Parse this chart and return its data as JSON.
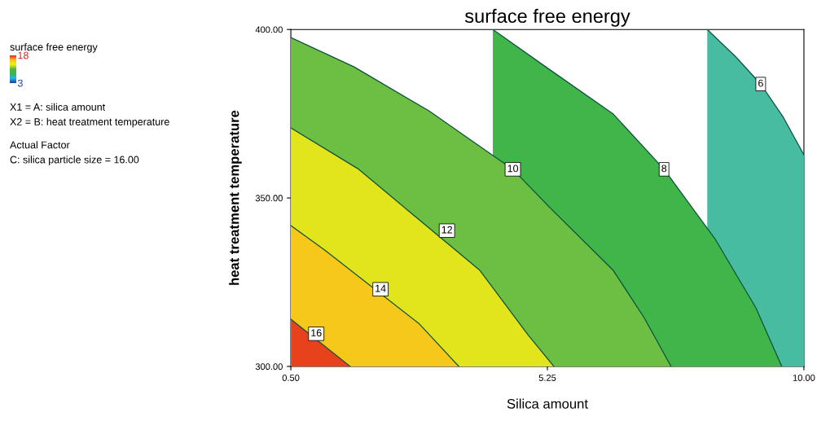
{
  "chart_data": {
    "type": "area",
    "title": "surface free energy",
    "xlabel": "Silica amount",
    "ylabel": "heat treatment temperature",
    "clabel": "surface free energy",
    "series": [
      {
        "color": "#e8421c",
        "x": [
          0.5,
          1.6
        ],
        "values": [
          314.0,
          300
        ]
      },
      {
        "color": "#f5c81a",
        "x": [
          0.5,
          1.13,
          2.88,
          3.61
        ],
        "values": [
          341.8,
          334.5,
          312.6,
          300
        ]
      },
      {
        "color": "#e2e41c",
        "x": [
          0.5,
          1.74,
          4.0,
          4.89,
          5.37
        ],
        "values": [
          370.8,
          358.7,
          328.5,
          309.4,
          300
        ]
      },
      {
        "color": "#6cbf42",
        "x": [
          0.5,
          1.67,
          3.06,
          4.61,
          5.31,
          6.47,
          7.04,
          7.54
        ],
        "values": [
          397.6,
          388.9,
          375.8,
          358.5,
          346.9,
          328.5,
          314.5,
          300
        ]
      },
      {
        "color": "#3fb54a",
        "x": [
          4.24,
          5.22,
          6.47,
          7.41,
          8.36,
          9.11,
          9.59
        ],
        "values": [
          400,
          388.9,
          374.9,
          358.5,
          337.7,
          317.4,
          300
        ]
      },
      {
        "color": "#48bca0",
        "x": [
          8.21,
          8.73,
          9.2,
          9.62,
          10.0
        ],
        "values": [
          400,
          392.0,
          383.8,
          373.9,
          362.8
        ]
      }
    ],
    "clim": [
      3,
      18
    ],
    "cticks": [
      3,
      18
    ],
    "xlim": [
      0.5,
      10.0
    ],
    "xticks": [
      {
        "value": 0.5,
        "label": "0.50"
      },
      {
        "value": 5.25,
        "label": "5.25"
      },
      {
        "value": 10.0,
        "label": "10.00"
      }
    ],
    "ylim": [
      300,
      400
    ],
    "yticks": [
      {
        "value": 300,
        "label": "300.00"
      },
      {
        "value": 350,
        "label": "350.00"
      },
      {
        "value": 400,
        "label": "400.00"
      }
    ],
    "marker": "none",
    "line_style": "solid",
    "annotations": [
      {
        "text": "16",
        "x": 0.97,
        "y": 309.7
      },
      {
        "text": "14",
        "x": 2.16,
        "y": 322.9
      },
      {
        "text": "12",
        "x": 3.39,
        "y": 340.3
      },
      {
        "text": "10",
        "x": 4.61,
        "y": 358.5
      },
      {
        "text": "8",
        "x": 7.41,
        "y": 358.5
      },
      {
        "text": "6",
        "x": 9.2,
        "y": 383.8
      },
      "X1 = A: silica amount",
      "X2 = B: heat treatment temperature",
      "Actual Factor",
      "C: silica particle size = 16.00"
    ]
  }
}
